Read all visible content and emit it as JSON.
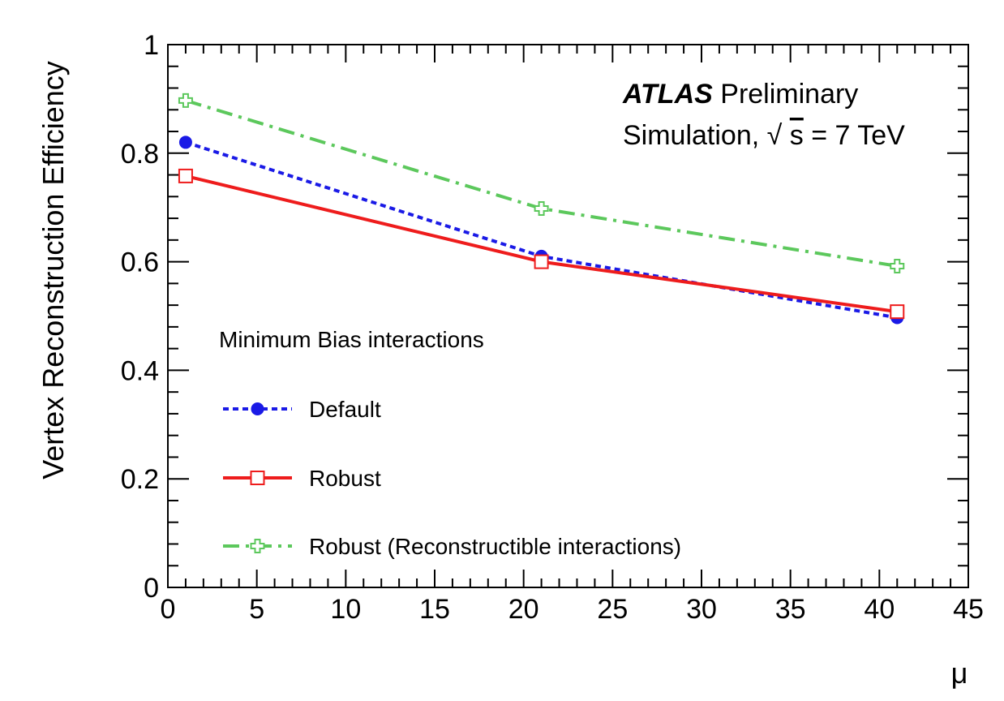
{
  "chart_data": {
    "type": "line",
    "xlabel": "μ",
    "ylabel": "Vertex Reconstruction Efficiency",
    "xlim": [
      0,
      45
    ],
    "ylim": [
      0,
      1
    ],
    "x_ticks": [
      "0",
      "5",
      "10",
      "15",
      "20",
      "25",
      "30",
      "35",
      "40",
      "45"
    ],
    "y_ticks": [
      "0",
      "0.2",
      "0.4",
      "0.6",
      "0.8",
      "1"
    ],
    "grid": false,
    "legend_placement": "bottom-left",
    "legend_title": "Minimum Bias interactions",
    "annotation": {
      "experiment": "ATLAS",
      "status": "Preliminary",
      "line2_prefix": "Simulation,",
      "sqrt_symbol": "√",
      "line2_var": "s",
      "line2_suffix": " = 7 TeV"
    },
    "series": [
      {
        "name": "Default",
        "color": "#1a1ae6",
        "line_style": "dotted",
        "marker": "filled-circle",
        "x": [
          1,
          21,
          41
        ],
        "y": [
          0.82,
          0.61,
          0.497
        ]
      },
      {
        "name": "Robust",
        "color": "#ee1c1c",
        "line_style": "solid",
        "marker": "open-square",
        "x": [
          1,
          21,
          41
        ],
        "y": [
          0.758,
          0.6,
          0.508
        ]
      },
      {
        "name": "Robust (Reconstructible interactions)",
        "color": "#5cc85c",
        "line_style": "dash-dot",
        "marker": "open-cross",
        "x": [
          1,
          21,
          41
        ],
        "y": [
          0.897,
          0.698,
          0.592
        ]
      }
    ]
  }
}
